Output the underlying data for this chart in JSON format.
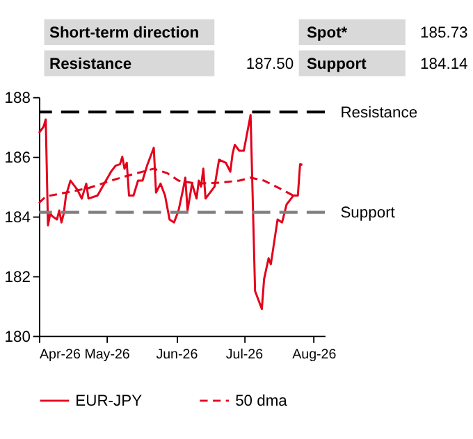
{
  "chart_data": {
    "type": "line",
    "annotations": [
      "Short-term direction",
      "Spot*",
      "185.73",
      "Resistance",
      "187.50",
      "Support",
      "184.14"
    ],
    "xlim": [
      "2026-04-01",
      "2026-08-06"
    ],
    "xticks": [
      {
        "value": "2026-04-01",
        "label": "Apr-26"
      },
      {
        "value": "2026-05-01",
        "label": "May-26"
      },
      {
        "value": "2026-06-01",
        "label": "Jun-26"
      },
      {
        "value": "2026-07-01",
        "label": "Jul-26"
      },
      {
        "value": "2026-08-01",
        "label": "Aug-26"
      }
    ],
    "ylim": [
      180,
      188
    ],
    "yticks": [
      180,
      182,
      184,
      186,
      188
    ],
    "grid": false,
    "legend": "bottom",
    "series": [
      {
        "name": "EUR-JPY",
        "color": "#e3001b",
        "line_style": "solid",
        "x": [
          "2026-04-01",
          "2026-04-03",
          "2026-04-04",
          "2026-04-05",
          "2026-04-06",
          "2026-04-07",
          "2026-04-09",
          "2026-04-10",
          "2026-04-11",
          "2026-04-12",
          "2026-04-13",
          "2026-04-15",
          "2026-04-18",
          "2026-04-20",
          "2026-04-22",
          "2026-04-23",
          "2026-04-27",
          "2026-04-30",
          "2026-05-03",
          "2026-05-05",
          "2026-05-07",
          "2026-05-08",
          "2026-05-09",
          "2026-05-10",
          "2026-05-11",
          "2026-05-13",
          "2026-05-15",
          "2026-05-17",
          "2026-05-19",
          "2026-05-22",
          "2026-05-23",
          "2026-05-25",
          "2026-05-27",
          "2026-05-29",
          "2026-05-31",
          "2026-06-02",
          "2026-06-04",
          "2026-06-05",
          "2026-06-06",
          "2026-06-08",
          "2026-06-10",
          "2026-06-11",
          "2026-06-12",
          "2026-06-13",
          "2026-06-14",
          "2026-06-18",
          "2026-06-20",
          "2026-06-23",
          "2026-06-25",
          "2026-06-26",
          "2026-06-27",
          "2026-06-29",
          "2026-07-01",
          "2026-07-04",
          "2026-07-06",
          "2026-07-09",
          "2026-07-10",
          "2026-07-12",
          "2026-07-13",
          "2026-07-16",
          "2026-07-18",
          "2026-07-20",
          "2026-07-23",
          "2026-07-25",
          "2026-07-26",
          "2026-07-27"
        ],
        "values": [
          186.8,
          187.0,
          187.25,
          183.7,
          184.1,
          184.0,
          183.9,
          184.2,
          183.8,
          184.1,
          184.7,
          185.2,
          184.9,
          184.6,
          185.1,
          184.6,
          184.7,
          185.1,
          185.5,
          185.7,
          185.75,
          186.0,
          185.6,
          185.8,
          184.7,
          184.7,
          185.2,
          185.2,
          185.7,
          186.3,
          184.8,
          185.1,
          184.7,
          183.9,
          183.8,
          184.2,
          184.9,
          185.3,
          184.2,
          185.1,
          184.6,
          185.2,
          185.0,
          185.6,
          184.6,
          185.0,
          185.9,
          185.8,
          185.5,
          186.1,
          186.4,
          186.2,
          186.2,
          187.4,
          181.5,
          180.9,
          181.9,
          182.6,
          182.4,
          183.9,
          183.8,
          184.4,
          184.7,
          184.7,
          185.75,
          185.73
        ]
      },
      {
        "name": "50 dma",
        "color": "#e3001b",
        "line_style": "dashed",
        "x": [
          "2026-04-01",
          "2026-04-04",
          "2026-04-13",
          "2026-04-23",
          "2026-05-03",
          "2026-05-12",
          "2026-05-22",
          "2026-05-28",
          "2026-06-02",
          "2026-06-10",
          "2026-06-20",
          "2026-06-29",
          "2026-07-04",
          "2026-07-10",
          "2026-07-18",
          "2026-07-23"
        ],
        "values": [
          184.45,
          184.67,
          184.8,
          184.95,
          185.2,
          185.4,
          185.6,
          185.45,
          185.2,
          185.1,
          185.13,
          185.2,
          185.3,
          185.2,
          184.9,
          184.7
        ]
      }
    ],
    "ref_lines": [
      {
        "axis": "y",
        "value": 187.5,
        "label": "Resistance",
        "color": "#000000",
        "line_style": "dashed"
      },
      {
        "axis": "y",
        "value": 184.14,
        "label": "Support",
        "color": "#808080",
        "line_style": "dashed"
      }
    ]
  }
}
